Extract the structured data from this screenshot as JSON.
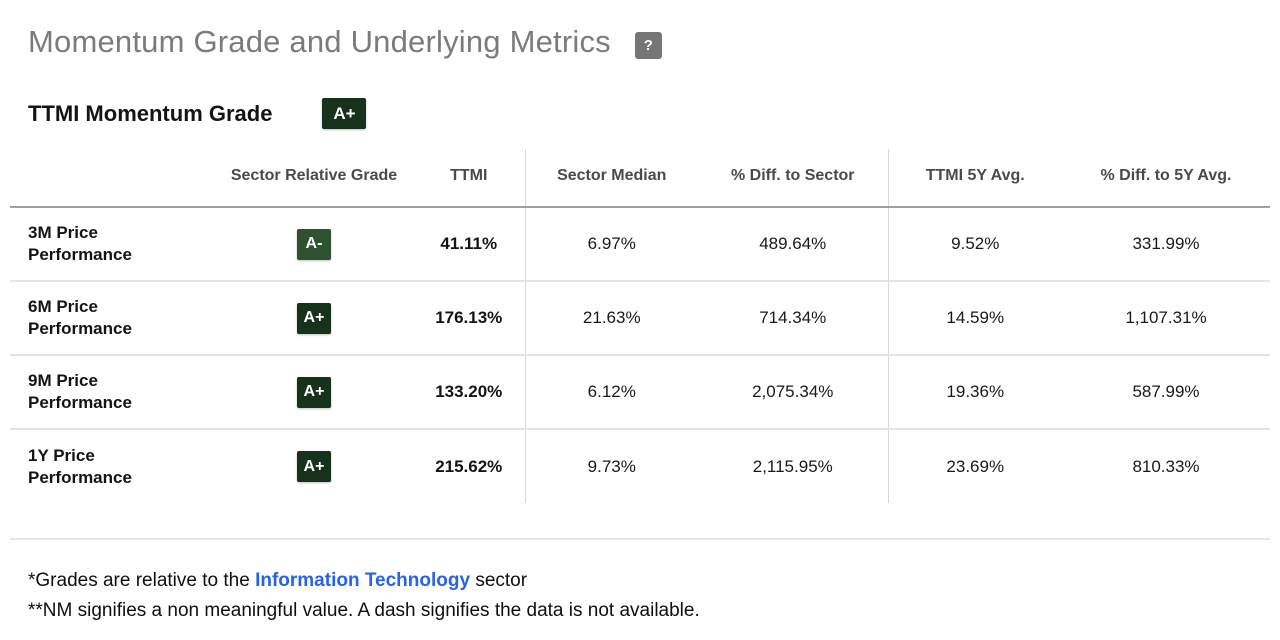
{
  "page": {
    "title": "Momentum Grade and Underlying Metrics",
    "help_icon": "?",
    "subtitle": "TTMI Momentum Grade",
    "subtitle_grade": "A+"
  },
  "table": {
    "columns": [
      "",
      "Sector Relative Grade",
      "TTMI",
      "Sector Median",
      "% Diff. to Sector",
      "TTMI 5Y Avg.",
      "% Diff. to 5Y Avg."
    ],
    "rows": [
      {
        "label": "3M Price Performance",
        "grade": "A-",
        "ttmi": "41.11%",
        "sector_median": "6.97%",
        "diff_to_sector": "489.64%",
        "ttmi_5y_avg": "9.52%",
        "diff_to_5y_avg": "331.99%"
      },
      {
        "label": "6M Price Performance",
        "grade": "A+",
        "ttmi": "176.13%",
        "sector_median": "21.63%",
        "diff_to_sector": "714.34%",
        "ttmi_5y_avg": "14.59%",
        "diff_to_5y_avg": "1,107.31%"
      },
      {
        "label": "9M Price Performance",
        "grade": "A+",
        "ttmi": "133.20%",
        "sector_median": "6.12%",
        "diff_to_sector": "2,075.34%",
        "ttmi_5y_avg": "19.36%",
        "diff_to_5y_avg": "587.99%"
      },
      {
        "label": "1Y Price Performance",
        "grade": "A+",
        "ttmi": "215.62%",
        "sector_median": "9.73%",
        "diff_to_sector": "2,115.95%",
        "ttmi_5y_avg": "23.69%",
        "diff_to_5y_avg": "810.33%"
      }
    ]
  },
  "footnotes": {
    "line1_prefix": "*Grades are relative to the ",
    "line1_link": "Information Technology",
    "line1_suffix": " sector",
    "line2": "**NM signifies a non meaningful value. A dash signifies the data is not available."
  },
  "colors": {
    "grade_a_plus_bg": "#16311c",
    "grade_a_minus_bg": "#2f5233",
    "link_blue": "#2563eb",
    "title_gray": "#7b7b7b",
    "help_icon_bg": "#767676"
  }
}
